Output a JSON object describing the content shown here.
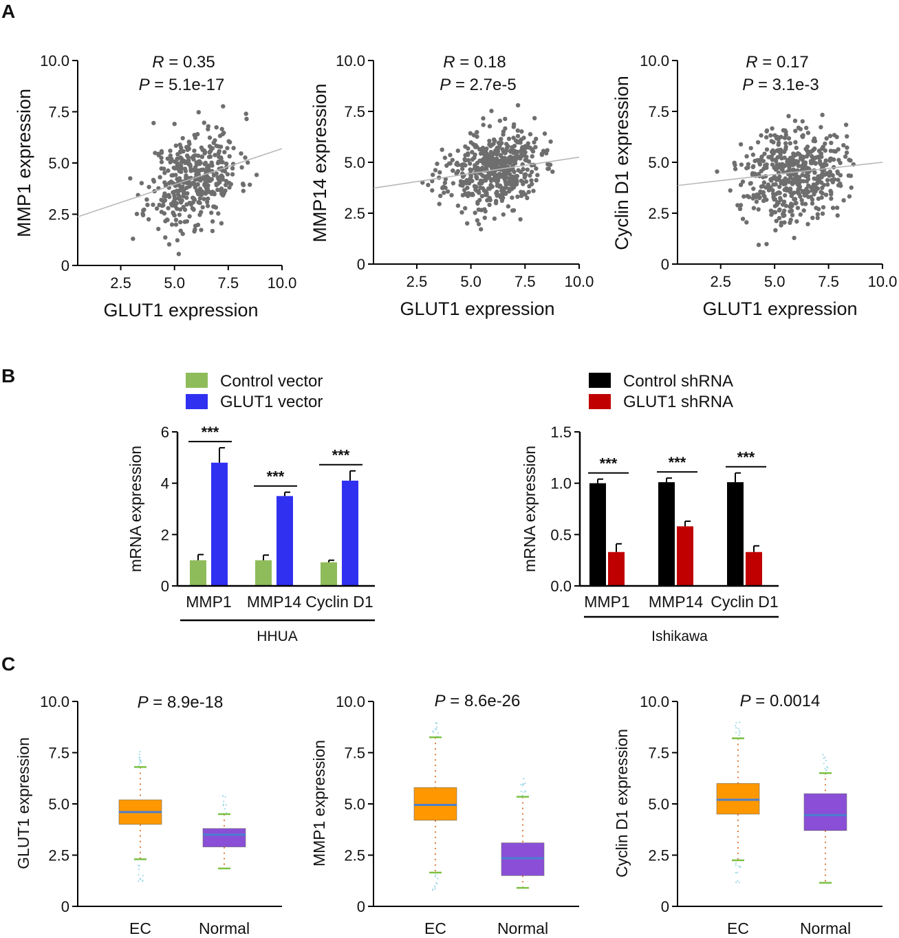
{
  "panel_labels": [
    "A",
    "B",
    "C"
  ],
  "colors": {
    "point": "#6e6e6e",
    "fit_line": "#b8b8b8",
    "control_vector": "#8fbc5a",
    "glut1_vector": "#3030f0",
    "control_shrna": "#000000",
    "glut1_shrna": "#c00000",
    "box_ec": "#ff9800",
    "box_normal": "#8a4fd6",
    "median": "#4a7fd0",
    "whisker_cap": "#7ac143",
    "whisker_dot": "#e07a3a",
    "outlier": "#9fd8e8"
  },
  "chart_data": [
    {
      "id": "A1",
      "type": "scatter",
      "xlabel": "GLUT1 expression",
      "ylabel": "MMP1 expression",
      "xlim": [
        0.5,
        10
      ],
      "ylim": [
        0,
        10
      ],
      "x_ticks": [
        "2.5",
        "5.0",
        "7.5",
        "10.0"
      ],
      "y_ticks": [
        "0",
        "2.5",
        "5.0",
        "7.5",
        "10.0"
      ],
      "stat_r_label": "R",
      "stat_r_value": " = 0.35",
      "stat_p_label": "P",
      "stat_p_value": " = 5.1e-17",
      "fit": {
        "intercept": 2.2,
        "slope": 0.35
      },
      "cloud": {
        "n": 420,
        "x_mean": 5.9,
        "x_sd": 1.05,
        "y_sd": 1.15,
        "seed": 11
      }
    },
    {
      "id": "A2",
      "type": "scatter",
      "xlabel": "GLUT1 expression",
      "ylabel": "MMP14 expression",
      "xlim": [
        0.5,
        10
      ],
      "ylim": [
        0,
        10
      ],
      "x_ticks": [
        "2.5",
        "5.0",
        "7.5",
        "10.0"
      ],
      "y_ticks": [
        "0",
        "2.5",
        "5.0",
        "7.5",
        "10.0"
      ],
      "stat_r_label": "R",
      "stat_r_value": " = 0.18",
      "stat_p_label": "P",
      "stat_p_value": " = 2.7e-5",
      "fit": {
        "intercept": 3.65,
        "slope": 0.16
      },
      "cloud": {
        "n": 520,
        "x_mean": 6.0,
        "x_sd": 1.1,
        "y_sd": 0.95,
        "seed": 23
      }
    },
    {
      "id": "A3",
      "type": "scatter",
      "xlabel": "GLUT1 expression",
      "ylabel": "Cyclin D1 expression",
      "xlim": [
        0.5,
        10
      ],
      "ylim": [
        0,
        10
      ],
      "x_ticks": [
        "2.5",
        "5.0",
        "7.5",
        "10.0"
      ],
      "y_ticks": [
        "0",
        "2.5",
        "5.0",
        "7.5",
        "10.0"
      ],
      "stat_r_label": "R",
      "stat_r_value": " = 0.17",
      "stat_p_label": "P",
      "stat_p_value": " = 3.1e-3",
      "fit": {
        "intercept": 3.8,
        "slope": 0.12
      },
      "cloud": {
        "n": 500,
        "x_mean": 5.9,
        "x_sd": 1.15,
        "y_sd": 1.15,
        "seed": 37
      }
    },
    {
      "id": "B1",
      "type": "bar",
      "ylabel": "mRNA expression",
      "group_label": "HHUA",
      "categories": [
        "MMP1",
        "MMP14",
        "Cyclin D1"
      ],
      "ylim": [
        0,
        6
      ],
      "y_ticks": [
        "0",
        "2",
        "4",
        "6"
      ],
      "significance": [
        "***",
        "***",
        "***"
      ],
      "series": [
        {
          "name": "Control vector",
          "values": [
            1.0,
            1.0,
            0.92
          ],
          "errors": [
            0.22,
            0.2,
            0.08
          ]
        },
        {
          "name": "GLUT1 vector",
          "values": [
            4.8,
            3.5,
            4.1
          ],
          "errors": [
            0.58,
            0.15,
            0.38
          ]
        }
      ]
    },
    {
      "id": "B2",
      "type": "bar",
      "ylabel": "mRNA expression",
      "group_label": "Ishikawa",
      "categories": [
        "MMP1",
        "MMP14",
        "Cyclin D1"
      ],
      "ylim": [
        0,
        1.5
      ],
      "y_ticks": [
        "0.0",
        "0.5",
        "1.0",
        "1.5"
      ],
      "significance": [
        "***",
        "***",
        "***"
      ],
      "series": [
        {
          "name": "Control shRNA",
          "values": [
            1.0,
            1.01,
            1.01
          ],
          "errors": [
            0.04,
            0.04,
            0.09
          ]
        },
        {
          "name": "GLUT1 shRNA",
          "values": [
            0.33,
            0.58,
            0.33
          ],
          "errors": [
            0.08,
            0.05,
            0.06
          ]
        }
      ]
    },
    {
      "id": "C1",
      "type": "box",
      "ylabel": "GLUT1 expression",
      "ylim": [
        0,
        10
      ],
      "y_ticks": [
        "0",
        "2.5",
        "5.0",
        "7.5",
        "10.0"
      ],
      "stat_p_label": "P",
      "stat_p_value": " = 8.9e-18",
      "categories": [
        "EC",
        "Normal"
      ],
      "boxes": [
        {
          "name": "EC",
          "min": 2.3,
          "q1": 4.0,
          "median": 4.6,
          "q3": 5.2,
          "max": 6.8
        },
        {
          "name": "Normal",
          "min": 1.85,
          "q1": 2.9,
          "median": 3.5,
          "q3": 3.8,
          "max": 4.5
        }
      ]
    },
    {
      "id": "C2",
      "type": "box",
      "ylabel": "MMP1 expression",
      "ylim": [
        0,
        10
      ],
      "y_ticks": [
        "0",
        "2.5",
        "5.0",
        "7.5",
        "10.0"
      ],
      "stat_p_label": "P",
      "stat_p_value": " = 8.6e-26",
      "categories": [
        "EC",
        "Normal"
      ],
      "boxes": [
        {
          "name": "EC",
          "min": 1.65,
          "q1": 4.2,
          "median": 4.95,
          "q3": 5.8,
          "max": 8.25
        },
        {
          "name": "Normal",
          "min": 0.9,
          "q1": 1.5,
          "median": 2.35,
          "q3": 3.1,
          "max": 5.35
        }
      ]
    },
    {
      "id": "C3",
      "type": "box",
      "ylabel": "Cyclin D1 expression",
      "ylim": [
        0,
        10
      ],
      "y_ticks": [
        "0",
        "2.5",
        "5.0",
        "7.5",
        "10.0"
      ],
      "stat_p_label": "P",
      "stat_p_value": " = 0.0014",
      "categories": [
        "EC",
        "Normal"
      ],
      "boxes": [
        {
          "name": "EC",
          "min": 2.25,
          "q1": 4.5,
          "median": 5.2,
          "q3": 6.0,
          "max": 8.2
        },
        {
          "name": "Normal",
          "min": 1.15,
          "q1": 3.7,
          "median": 4.45,
          "q3": 5.5,
          "max": 6.5
        }
      ]
    }
  ]
}
